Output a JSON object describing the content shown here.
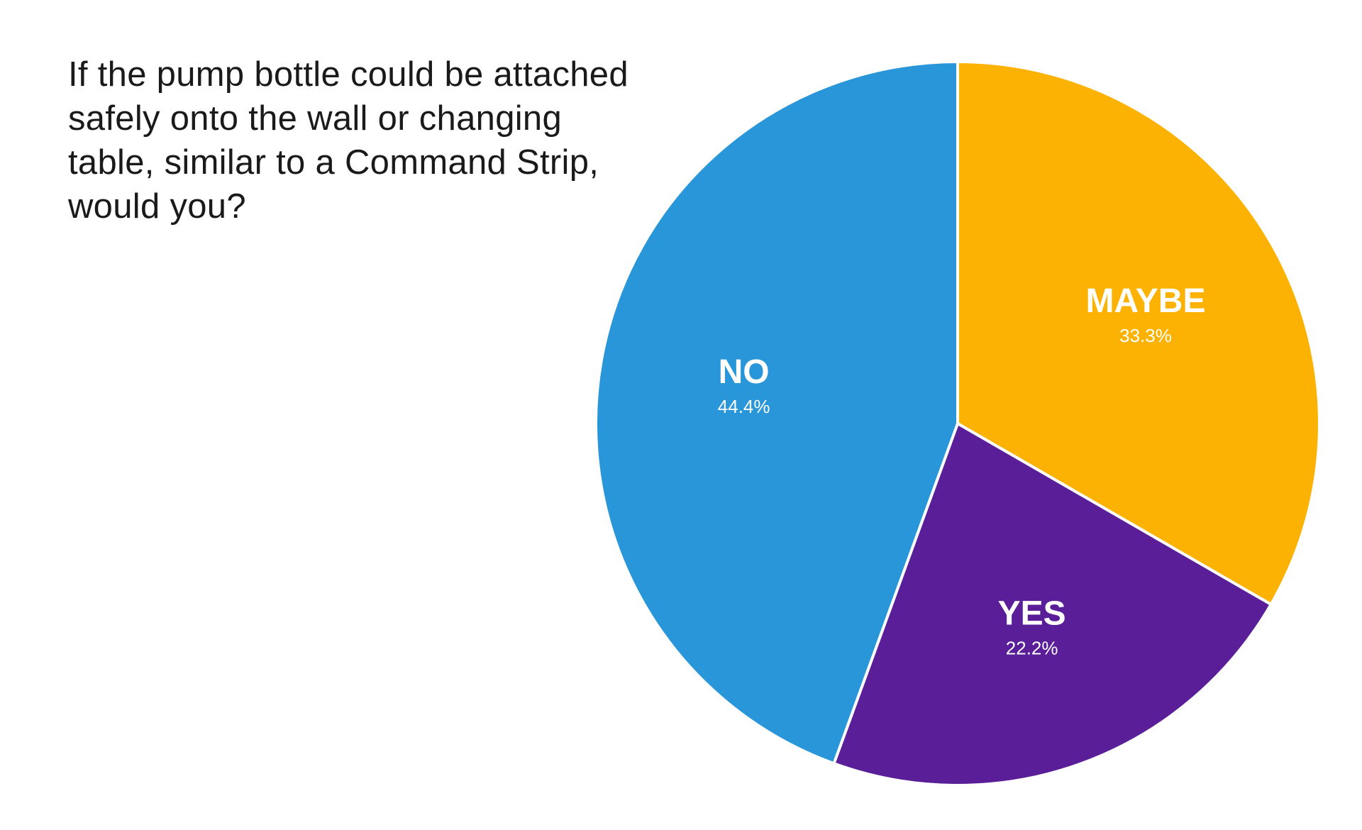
{
  "question": {
    "lines": [
      "If the pump bottle could be attached",
      "safely onto the wall or changing",
      "table, similar to a Command Strip,",
      "would you?"
    ]
  },
  "chart_data": {
    "type": "pie",
    "title": "If the pump bottle could be attached safely onto the wall or changing table, similar to a Command Strip, would you?",
    "start_angle_deg": 0,
    "direction": "clockwise",
    "slices": [
      {
        "label": "MAYBE",
        "value": 33.3,
        "value_label": "33.3%",
        "color": "#FBB203"
      },
      {
        "label": "YES",
        "value": 22.2,
        "value_label": "22.2%",
        "color": "#5A1E99"
      },
      {
        "label": "NO",
        "value": 44.4,
        "value_label": "44.4%",
        "color": "#2896D8"
      }
    ],
    "slice_border_color": "#ffffff"
  }
}
